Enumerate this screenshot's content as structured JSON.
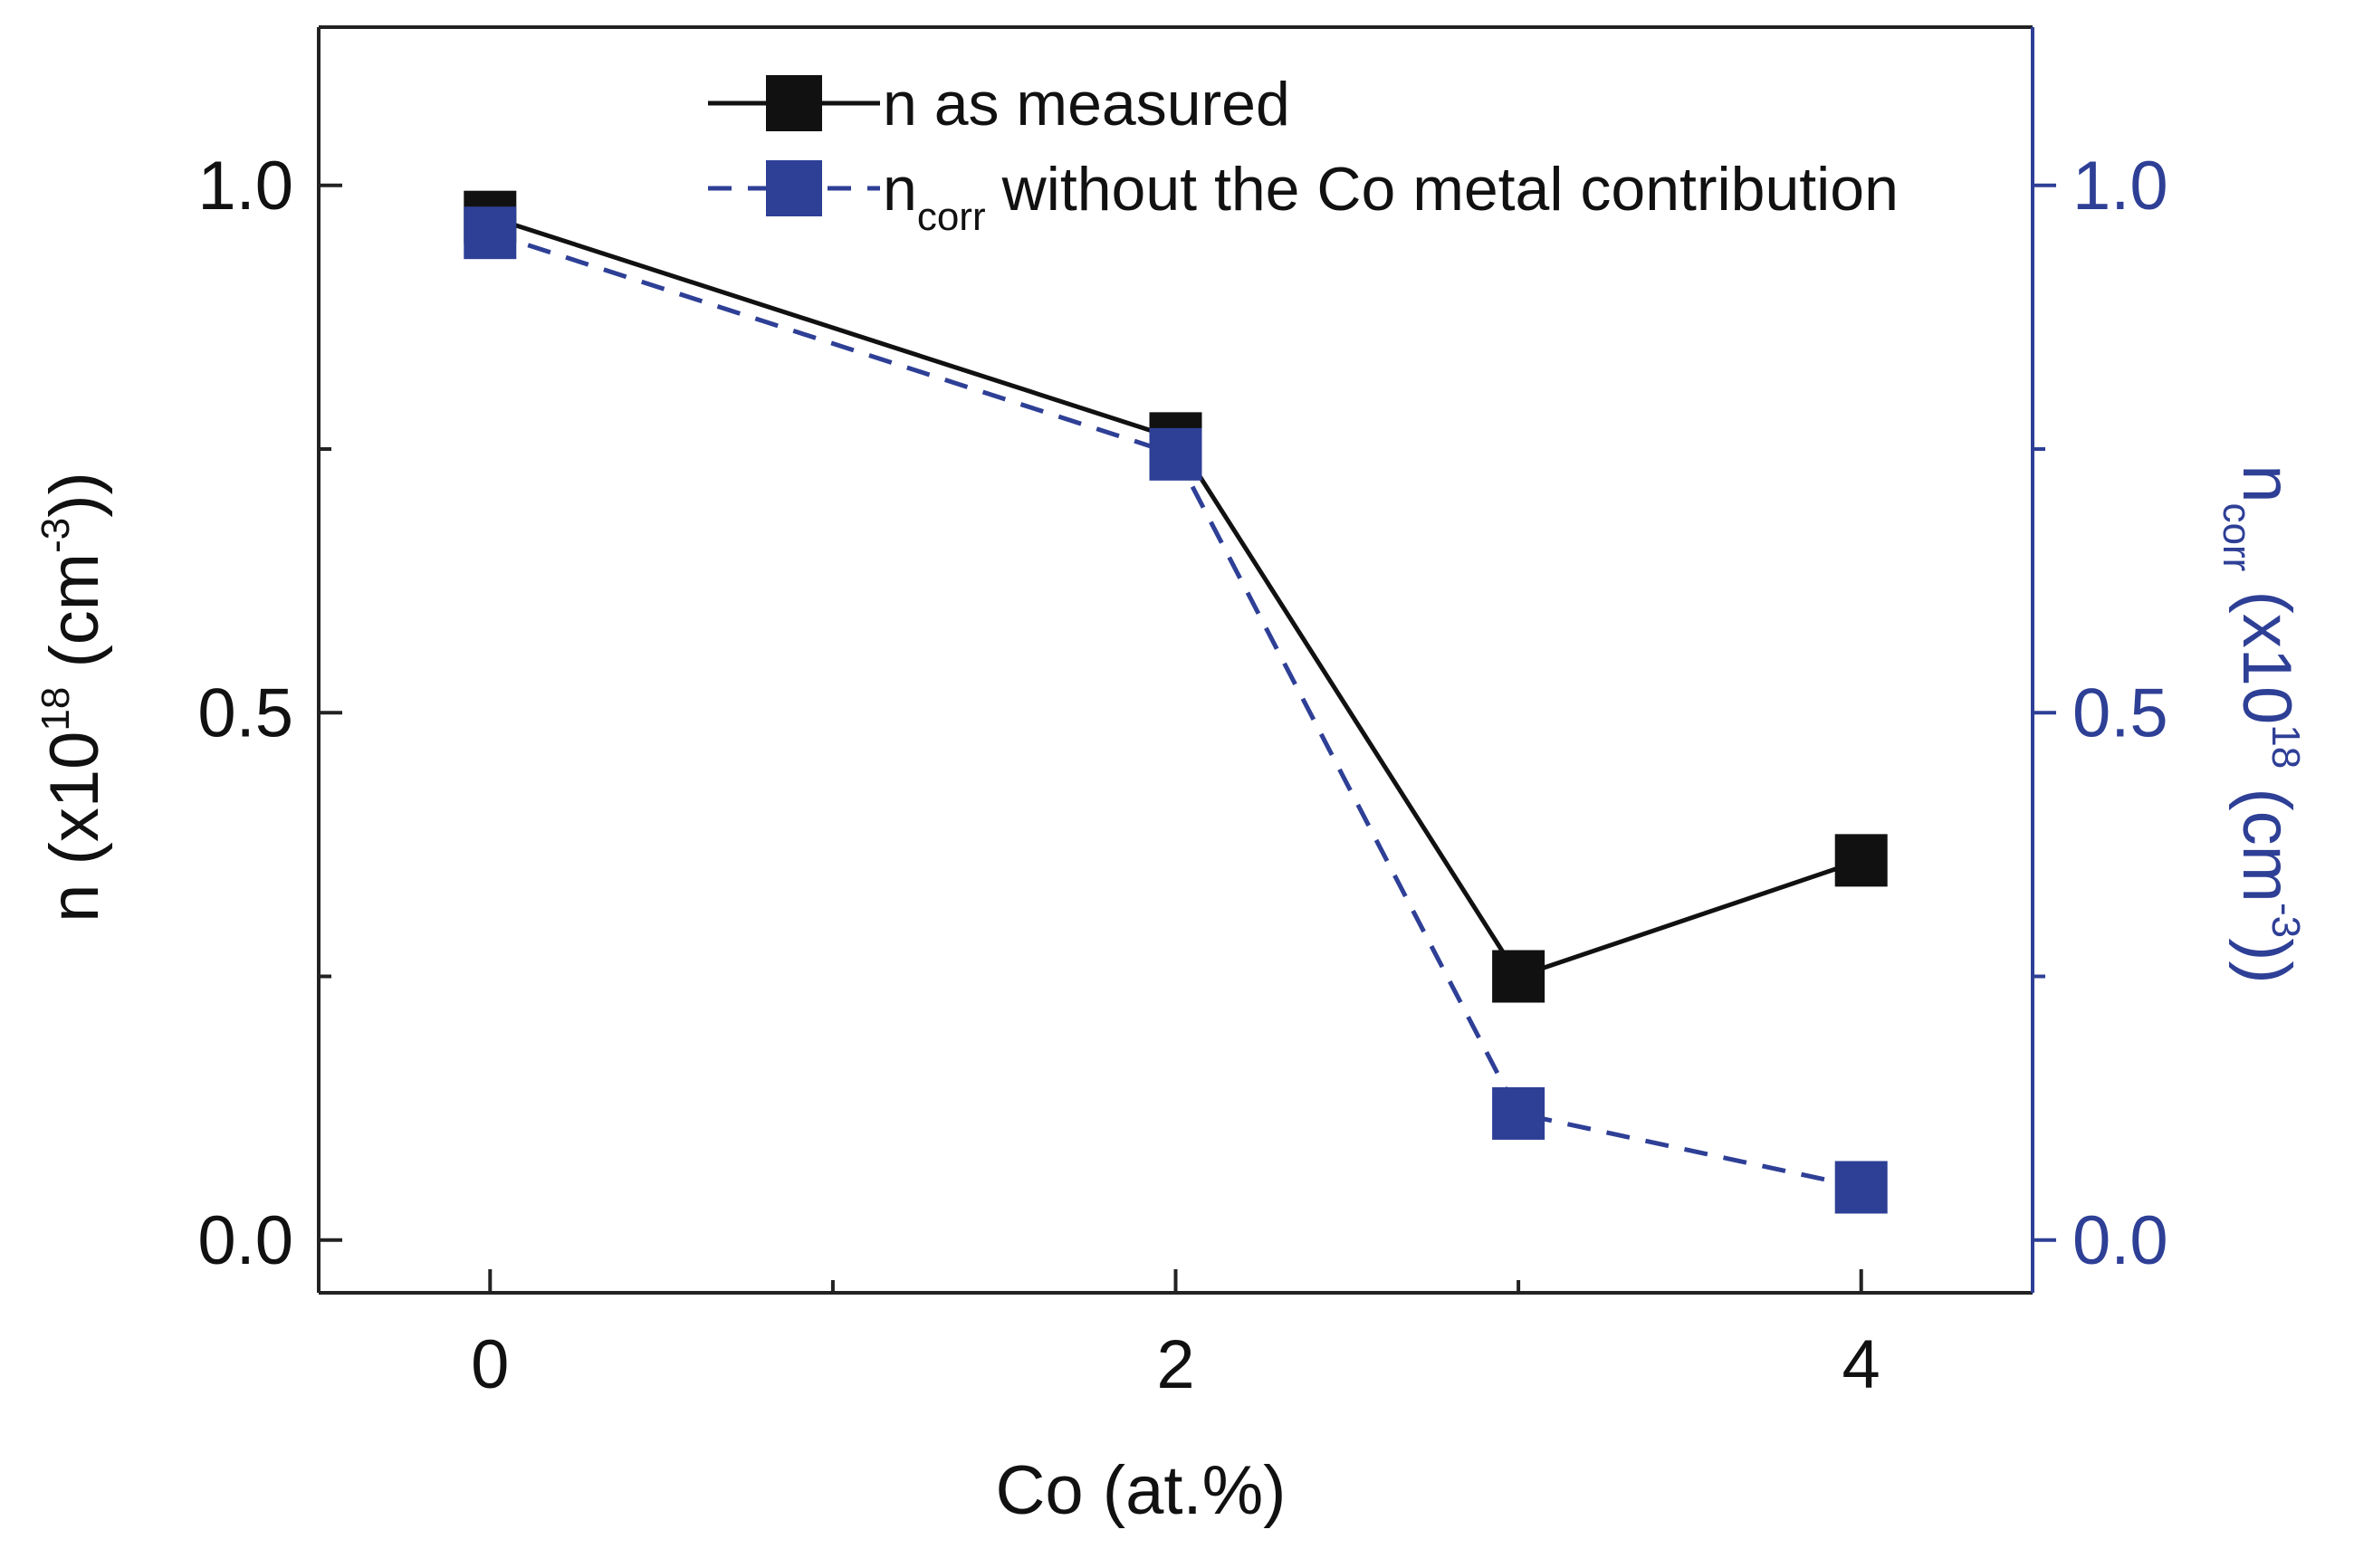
{
  "chart_data": {
    "type": "line",
    "x": [
      0,
      2,
      3,
      4
    ],
    "xlabel": "Co (at.%)",
    "xlim": [
      -0.5,
      4.5
    ],
    "xticks": [
      "0",
      "2",
      "4"
    ],
    "ylim": [
      -0.05,
      1.15
    ],
    "yticks": [
      "0.0",
      "0.5",
      "1.0"
    ],
    "ylabel": {
      "main": "n (x10",
      "sup1": "18",
      "mid": " (cm",
      "sup2": "-3",
      "end": "))"
    },
    "ylim_right": [
      -0.05,
      1.15
    ],
    "yticks_right": [
      "0.0",
      "0.5",
      "1.0"
    ],
    "ylabel_right": {
      "main": "n",
      "sub": "corr",
      "mid": " (x10",
      "sup1": "18",
      "mid2": " (cm",
      "sup2": "-3",
      "end": "))"
    },
    "grid": false,
    "legend_position": "top-right",
    "series": [
      {
        "name": "n as measured",
        "values": [
          0.97,
          0.76,
          0.25,
          0.36
        ],
        "color": "#111111",
        "style": "solid",
        "axis": "left"
      },
      {
        "name": "without the Co metal contribution",
        "name_prefix": "n",
        "name_sub": "corr",
        "values": [
          0.955,
          0.745,
          0.12,
          0.05
        ],
        "color": "#2e3f96",
        "style": "dashed",
        "axis": "right"
      }
    ],
    "right_axis_color": "#2e3f96"
  }
}
